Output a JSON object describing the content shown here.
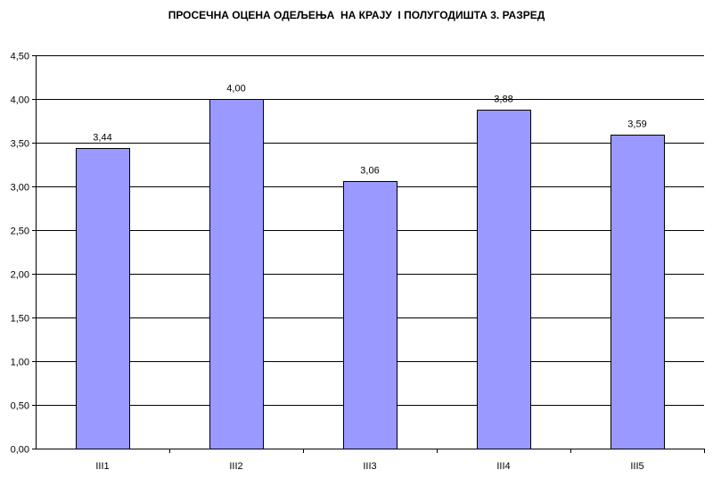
{
  "chart_data": {
    "type": "bar",
    "title": "ПРОСЕЧНА ОЦЕНА ОДЕЉЕЊА  НА КРАЈУ  I ПОЛУГОДИШТА 3. РАЗРЕД",
    "categories": [
      "III1",
      "III2",
      "III3",
      "III4",
      "III5"
    ],
    "values": [
      3.44,
      4.0,
      3.06,
      3.88,
      3.59
    ],
    "value_labels": [
      "3,44",
      "4,00",
      "3,06",
      "3,88",
      "3,59"
    ],
    "y_ticks": [
      0,
      0.5,
      1,
      1.5,
      2,
      2.5,
      3,
      3.5,
      4,
      4.5
    ],
    "y_tick_labels": [
      "0,00",
      "0,50",
      "1,00",
      "1,50",
      "2,00",
      "2,50",
      "3,00",
      "3,50",
      "4,00",
      "4,50"
    ],
    "ylim": [
      0,
      4.5
    ],
    "xlabel": "",
    "ylabel": "",
    "grid": true,
    "legend": "none",
    "bar_color": "#9999ff",
    "bar_border_color": "#000000",
    "grid_color": "#000000"
  }
}
